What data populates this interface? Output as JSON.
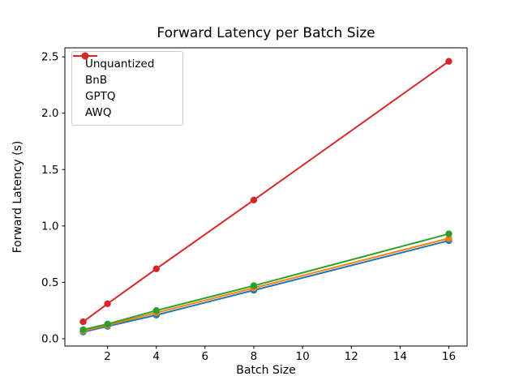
{
  "chart_data": {
    "type": "line",
    "title": "Forward Latency per Batch Size",
    "xlabel": "Batch Size",
    "ylabel": "Forward Latency (s)",
    "x": [
      1,
      2,
      4,
      8,
      16
    ],
    "series": [
      {
        "name": "Unquantized",
        "color": "#1f77b4",
        "values": [
          0.06,
          0.11,
          0.21,
          0.43,
          0.87
        ]
      },
      {
        "name": "BnB",
        "color": "#ff7f0e",
        "values": [
          0.07,
          0.12,
          0.23,
          0.45,
          0.89
        ]
      },
      {
        "name": "GPTQ",
        "color": "#2ca02c",
        "values": [
          0.08,
          0.13,
          0.25,
          0.47,
          0.93
        ]
      },
      {
        "name": "AWQ",
        "color": "#d62728",
        "values": [
          0.15,
          0.31,
          0.62,
          1.23,
          2.46
        ]
      }
    ],
    "xlim": [
      0.25,
      16.75
    ],
    "ylim": [
      -0.065,
      2.58
    ],
    "xticks": [
      2,
      4,
      6,
      8,
      10,
      12,
      14,
      16
    ],
    "xtick_labels": [
      "2",
      "4",
      "6",
      "8",
      "10",
      "12",
      "14",
      "16"
    ],
    "yticks": [
      0.0,
      0.5,
      1.0,
      1.5,
      2.0,
      2.5
    ],
    "ytick_labels": [
      "0.0",
      "0.5",
      "1.0",
      "1.5",
      "2.0",
      "2.5"
    ],
    "grid": false,
    "legend_position": "upper left",
    "marker": "o",
    "spine_color": "#000000",
    "legend_border_color": "#cccccc"
  }
}
